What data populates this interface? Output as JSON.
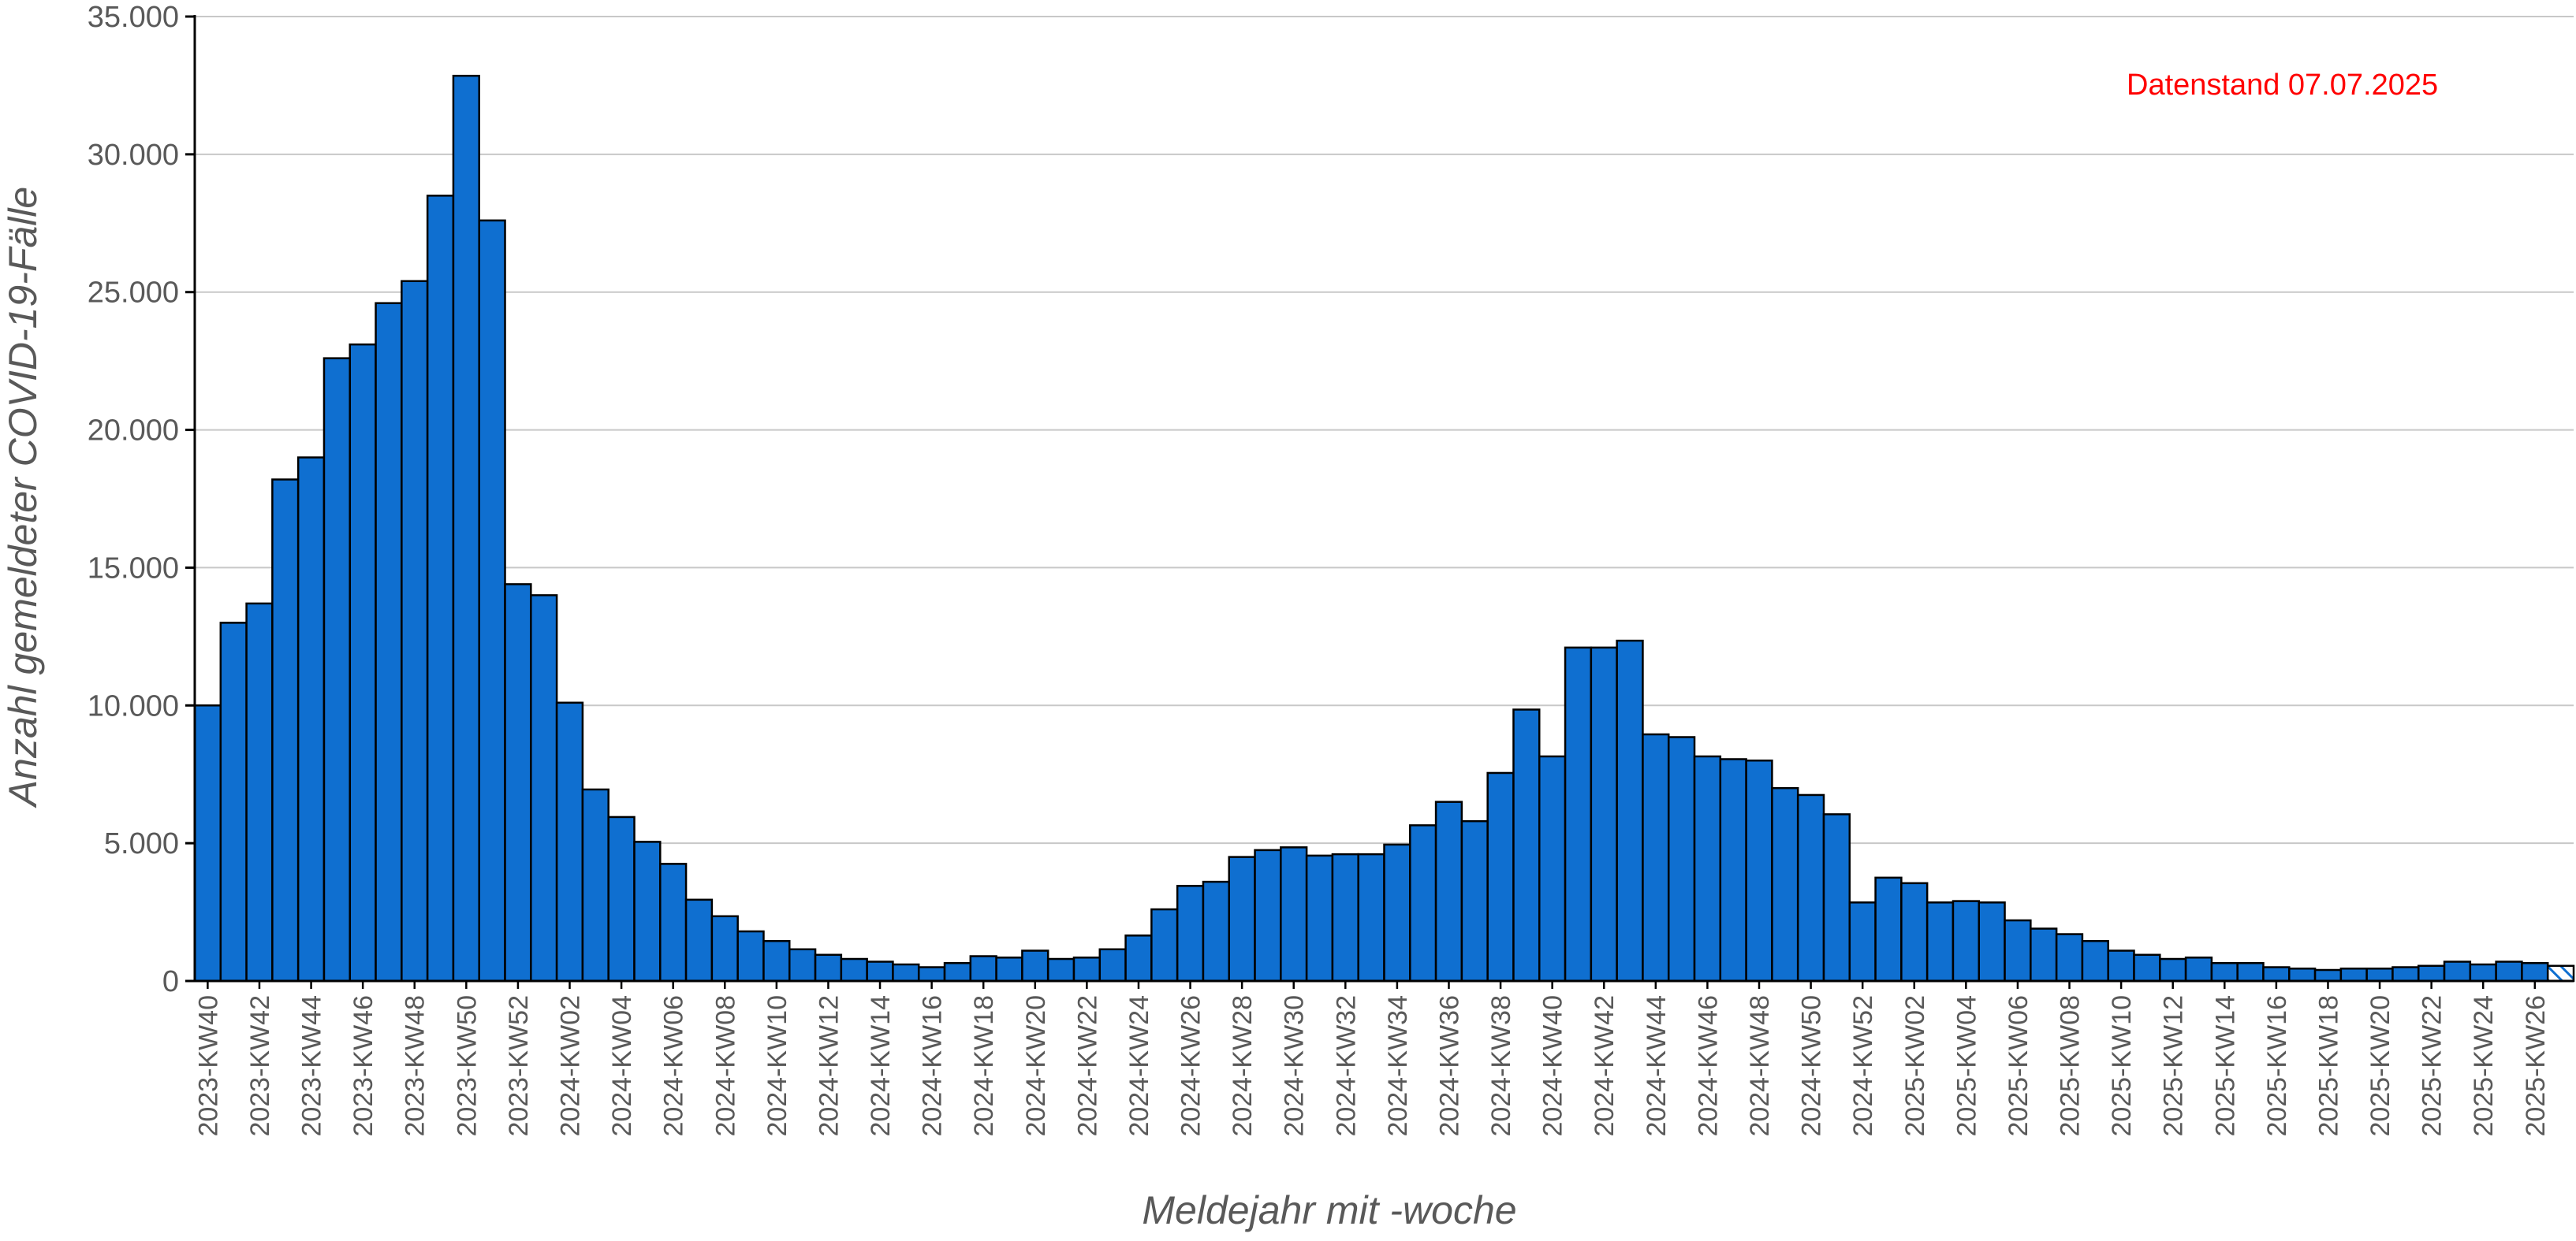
{
  "chart_data": {
    "type": "bar",
    "title": "",
    "xlabel": "Meldejahr mit -woche",
    "ylabel": "Anzahl gemeldeter COVID-19-Fälle",
    "annotation": "Datenstand 07.07.2025",
    "ylim": [
      0,
      35000
    ],
    "yticks": [
      0,
      5000,
      10000,
      15000,
      20000,
      25000,
      30000,
      35000
    ],
    "ytick_labels": [
      "0",
      "5.000",
      "10.000",
      "15.000",
      "20.000",
      "25.000",
      "30.000",
      "35.000"
    ],
    "grid": "horizontal",
    "bar_color": "#0f6fd0",
    "bar_edge_color": "#000000",
    "last_bar_note": "hatched (incomplete week)",
    "categories": [
      "2023-KW40",
      "2023-KW41",
      "2023-KW42",
      "2023-KW43",
      "2023-KW44",
      "2023-KW45",
      "2023-KW46",
      "2023-KW47",
      "2023-KW48",
      "2023-KW49",
      "2023-KW50",
      "2023-KW51",
      "2023-KW52",
      "2024-KW01",
      "2024-KW02",
      "2024-KW03",
      "2024-KW04",
      "2024-KW05",
      "2024-KW06",
      "2024-KW07",
      "2024-KW08",
      "2024-KW09",
      "2024-KW10",
      "2024-KW11",
      "2024-KW12",
      "2024-KW13",
      "2024-KW14",
      "2024-KW15",
      "2024-KW16",
      "2024-KW17",
      "2024-KW18",
      "2024-KW19",
      "2024-KW20",
      "2024-KW21",
      "2024-KW22",
      "2024-KW23",
      "2024-KW24",
      "2024-KW25",
      "2024-KW26",
      "2024-KW27",
      "2024-KW28",
      "2024-KW29",
      "2024-KW30",
      "2024-KW31",
      "2024-KW32",
      "2024-KW33",
      "2024-KW34",
      "2024-KW35",
      "2024-KW36",
      "2024-KW37",
      "2024-KW38",
      "2024-KW39",
      "2024-KW40",
      "2024-KW41",
      "2024-KW42",
      "2024-KW43",
      "2024-KW44",
      "2024-KW45",
      "2024-KW46",
      "2024-KW47",
      "2024-KW48",
      "2024-KW49",
      "2024-KW50",
      "2024-KW51",
      "2024-KW52",
      "2025-KW01",
      "2025-KW02",
      "2025-KW03",
      "2025-KW04",
      "2025-KW05",
      "2025-KW06",
      "2025-KW07",
      "2025-KW08",
      "2025-KW09",
      "2025-KW10",
      "2025-KW11",
      "2025-KW12",
      "2025-KW13",
      "2025-KW14",
      "2025-KW15",
      "2025-KW16",
      "2025-KW17",
      "2025-KW18",
      "2025-KW19",
      "2025-KW20",
      "2025-KW21",
      "2025-KW22",
      "2025-KW23",
      "2025-KW24",
      "2025-KW25",
      "2025-KW26",
      "2025-KW27"
    ],
    "values": [
      10000,
      13000,
      13700,
      18200,
      19000,
      22600,
      23100,
      24600,
      25400,
      28500,
      32850,
      27600,
      14400,
      14000,
      10100,
      6950,
      5950,
      5050,
      4250,
      2950,
      2350,
      1800,
      1450,
      1150,
      950,
      800,
      700,
      600,
      500,
      650,
      900,
      850,
      1100,
      800,
      850,
      1150,
      1650,
      2600,
      3450,
      3600,
      4500,
      4750,
      4850,
      4550,
      4600,
      4600,
      4950,
      5650,
      6500,
      5800,
      7550,
      9850,
      8150,
      12100,
      12100,
      12350,
      8950,
      8850,
      8150,
      8050,
      8000,
      7000,
      6750,
      6050,
      2850,
      3750,
      3550,
      2850,
      2900,
      2850,
      2200,
      1900,
      1700,
      1450,
      1100,
      950,
      800,
      850,
      650,
      650,
      500,
      450,
      400,
      450,
      450,
      500,
      550,
      700,
      600,
      700,
      650,
      550
    ]
  }
}
